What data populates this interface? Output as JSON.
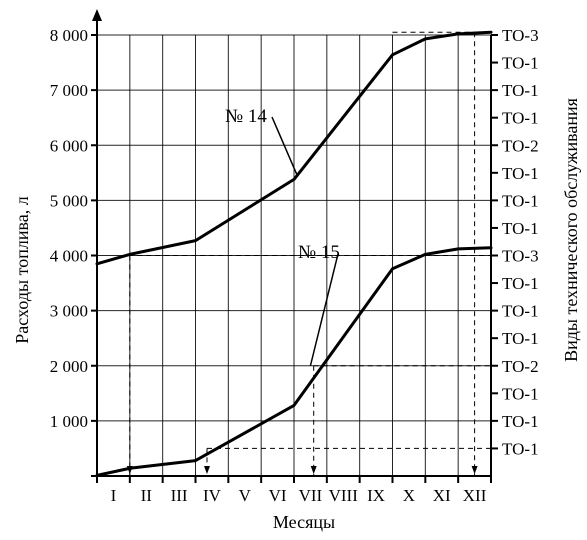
{
  "chart_data": {
    "type": "line",
    "title": "",
    "xlabel": "Месяцы",
    "ylabel": "Расходы топлива, л",
    "y2label": "Виды технического обслуживания",
    "categories": [
      "I",
      "II",
      "III",
      "IV",
      "V",
      "VI",
      "VII",
      "VIII",
      "IX",
      "X",
      "XI",
      "XII"
    ],
    "y_ticks": [
      "1 000",
      "2 000",
      "3 000",
      "4 000",
      "5 000",
      "6 000",
      "7 000",
      "8 000"
    ],
    "y_tick_values": [
      1000,
      2000,
      3000,
      4000,
      5000,
      6000,
      7000,
      8000
    ],
    "ylim": [
      0,
      8000
    ],
    "right_ticks": [
      "ТО-3",
      "ТО-1",
      "ТО-1",
      "ТО-1",
      "ТО-2",
      "ТО-1",
      "ТО-1",
      "ТО-1",
      "ТО-3",
      "ТО-1",
      "ТО-1",
      "ТО-1",
      "ТО-2",
      "ТО-1",
      "ТО-1",
      "ТО-1"
    ],
    "right_tick_values": [
      8000,
      7500,
      7000,
      6500,
      6000,
      5500,
      5000,
      4500,
      4000,
      3500,
      3000,
      2500,
      2000,
      1500,
      1000,
      500
    ],
    "grid": true,
    "series": [
      {
        "name": "№ 14",
        "x": [
          0,
          1,
          3,
          6,
          9,
          10,
          11,
          12
        ],
        "y": [
          3850,
          4020,
          4270,
          5380,
          7640,
          7930,
          8020,
          8050
        ]
      },
      {
        "name": "№ 15",
        "x": [
          0,
          1,
          3,
          6,
          9,
          10,
          11,
          12
        ],
        "y": [
          10,
          140,
          280,
          1280,
          3760,
          4020,
          4120,
          4140
        ]
      }
    ]
  }
}
